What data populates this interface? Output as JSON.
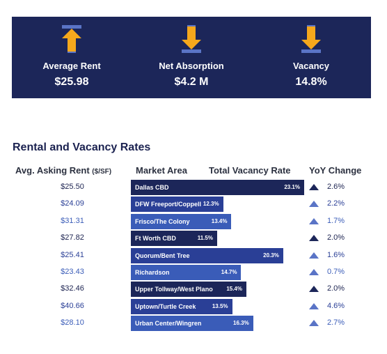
{
  "kpis": [
    {
      "label": "Average Rent",
      "value": "$25.98",
      "icon": "arrow-up-icon",
      "direction": "up"
    },
    {
      "label": "Net Absorption",
      "value": "$4.2 M",
      "icon": "arrow-down-icon",
      "direction": "down"
    },
    {
      "label": "Vacancy",
      "value": "14.8%",
      "icon": "arrow-down-icon",
      "direction": "down"
    }
  ],
  "section_title": "Rental and Vacancy Rates",
  "headers": {
    "rent": "Avg. Asking Rent",
    "rent_unit": "($/SF)",
    "market": "Market Area",
    "vacancy": "Total Vacancy Rate",
    "yoy": "YoY Change"
  },
  "colors": {
    "banner": "#1c2659",
    "bar_dark": "#1c2659",
    "bar_mid": "#2a3f96",
    "bar_light": "#3a5cb8",
    "arrow": "#f6a81c",
    "triangle_dark": "#1c2659",
    "triangle_light": "#5a74c6"
  },
  "chart_data": {
    "type": "bar",
    "title": "Rental and Vacancy Rates",
    "xlabel": "Total Vacancy Rate",
    "ylabel": "Market Area",
    "xlim": [
      0,
      23.1
    ],
    "categories": [
      "Dallas CBD",
      "DFW Freeport/Coppell",
      "Frisco/The Colony",
      "Ft Worth CBD",
      "Quorum/Bent Tree",
      "Richardson",
      "Upper Tollway/West Plano",
      "Uptown/Turtle Creek",
      "Urban Center/Wingren"
    ],
    "series": [
      {
        "values": [
          23.1,
          12.3,
          13.4,
          11.5,
          20.3,
          14.7,
          15.4,
          13.5,
          16.3
        ]
      }
    ],
    "vacancy_labels": [
      "23.1%",
      "12.3%",
      "13.4%",
      "11.5%",
      "20.3%",
      "14.7%",
      "15.4%",
      "13.5%",
      "16.3%"
    ],
    "avg_asking_rent": [
      "$25.50",
      "$24.09",
      "$31.31",
      "$27.82",
      "$25.41",
      "$23.43",
      "$32.46",
      "$40.66",
      "$28.10"
    ],
    "yoy_change": [
      "2.6%",
      "2.2%",
      "1.7%",
      "2.0%",
      "1.6%",
      "0.7%",
      "2.0%",
      "4.6%",
      "2.7%"
    ],
    "row_tone": [
      "dark",
      "mid",
      "light",
      "dark",
      "mid",
      "light",
      "dark",
      "mid",
      "light"
    ]
  }
}
